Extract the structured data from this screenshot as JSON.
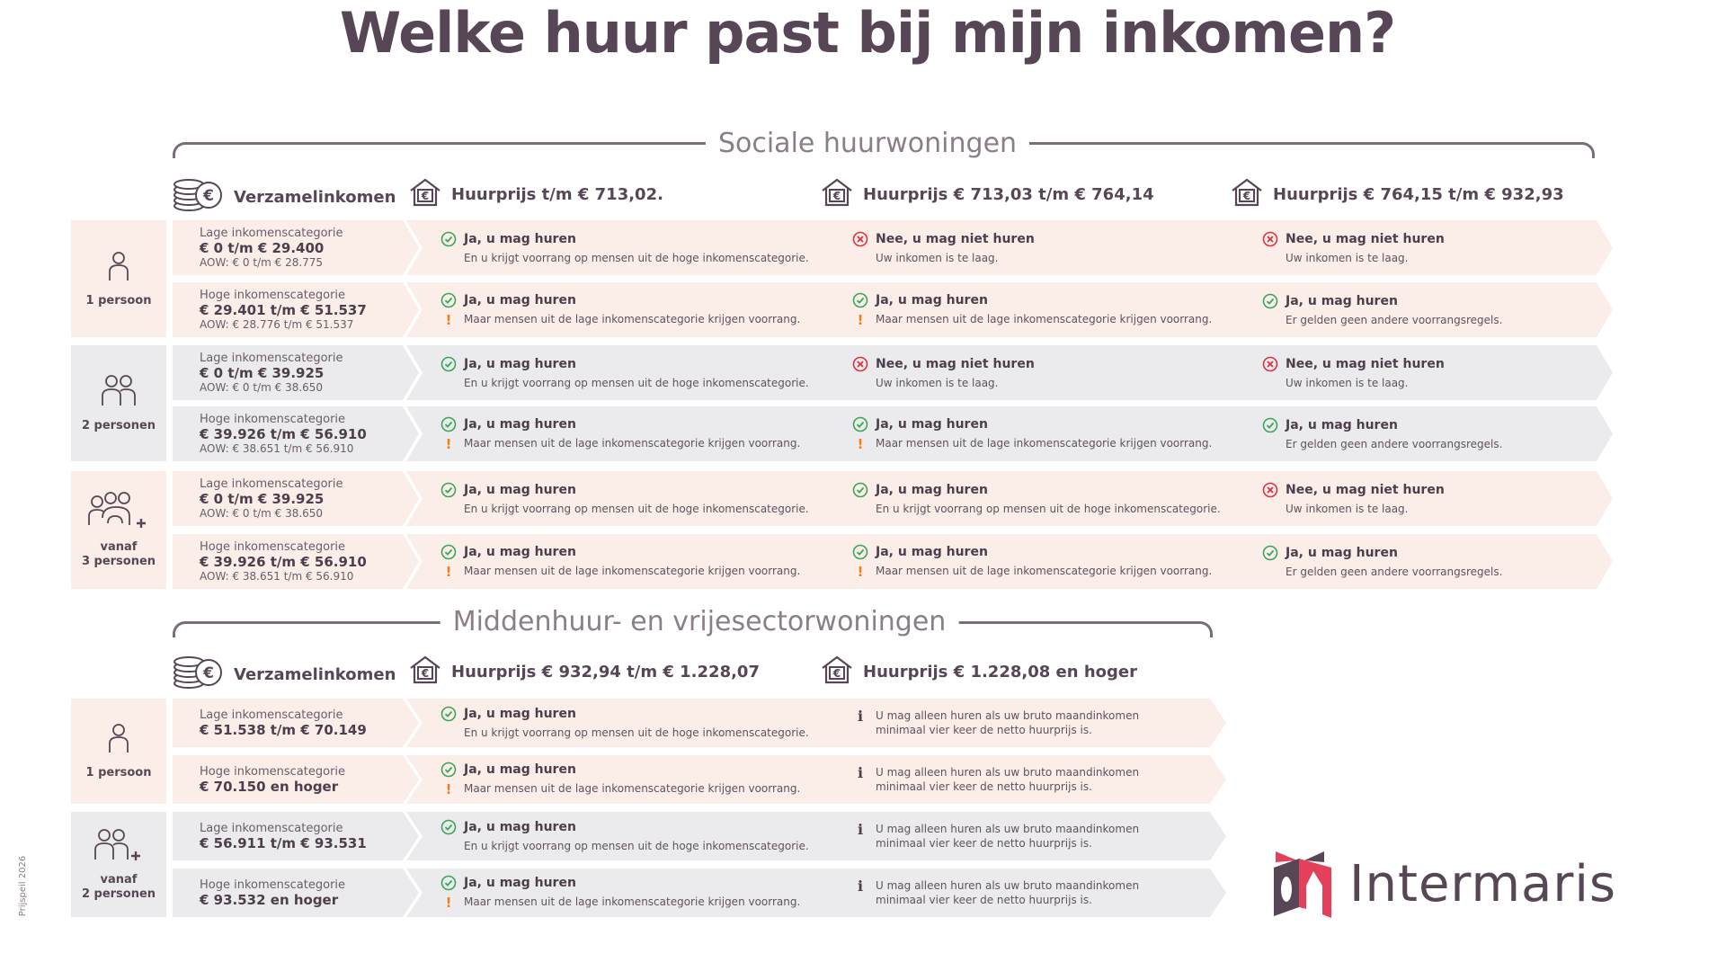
{
  "title": "Welke huur past bij mijn inkomen?",
  "footer_note": "Prijspeil 2026",
  "logo": {
    "name": "Intermaris"
  },
  "colors": {
    "pink": "#fbede8",
    "gray": "#ebebed",
    "yes": "#3aa55a",
    "no": "#d9333f",
    "warn": "#f07d1e",
    "text": "#574756"
  },
  "sociaal": {
    "section_label": "Sociale huurwoningen",
    "headers": [
      "Verzamelinkomen",
      "Huurprijs t/m € 713,02.",
      "Huurprijs € 713,03 t/m € 764,14",
      "Huurprijs € 764,15 t/m € 932,93"
    ],
    "groups": [
      {
        "person": [
          "1 persoon"
        ],
        "icon": "person-icon",
        "tone": "pink",
        "rows": [
          {
            "label": "Lage inkomenscategorie",
            "value": "€ 0 t/m € 29.400",
            "aow": "AOW: € 0 t/m € 28.775",
            "answers": [
              {
                "status": "yes",
                "title": "Ja, u mag huren",
                "text": "En u krijgt voorrang op mensen uit de hoge inkomenscategorie."
              },
              {
                "status": "no",
                "title": "Nee, u mag niet huren",
                "text": "Uw inkomen is te laag."
              },
              {
                "status": "no",
                "title": "Nee, u mag niet huren",
                "text": "Uw inkomen is te laag."
              }
            ]
          },
          {
            "label": "Hoge inkomenscategorie",
            "value": "€ 29.401 t/m € 51.537",
            "aow": "AOW: € 28.776 t/m € 51.537",
            "answers": [
              {
                "status": "yes",
                "warn": true,
                "title": "Ja, u mag huren",
                "text": "Maar mensen uit de lage inkomenscategorie krijgen voorrang."
              },
              {
                "status": "yes",
                "warn": true,
                "title": "Ja, u mag huren",
                "text": "Maar mensen uit de lage inkomenscategorie krijgen voorrang."
              },
              {
                "status": "yes",
                "title": "Ja, u mag huren",
                "text": "Er gelden geen andere voorrangsregels."
              }
            ]
          }
        ]
      },
      {
        "person": [
          "2 personen"
        ],
        "icon": "two-persons-icon",
        "tone": "gray",
        "rows": [
          {
            "label": "Lage inkomenscategorie",
            "value": "€ 0 t/m € 39.925",
            "aow": "AOW: € 0 t/m € 38.650",
            "answers": [
              {
                "status": "yes",
                "title": "Ja, u mag huren",
                "text": "En u krijgt voorrang op mensen uit de hoge inkomenscategorie."
              },
              {
                "status": "no",
                "title": "Nee, u mag niet huren",
                "text": "Uw inkomen is te laag."
              },
              {
                "status": "no",
                "title": "Nee, u mag niet huren",
                "text": "Uw inkomen is te laag."
              }
            ]
          },
          {
            "label": "Hoge inkomenscategorie",
            "value": "€ 39.926 t/m € 56.910",
            "aow": "AOW: € 38.651 t/m € 56.910",
            "answers": [
              {
                "status": "yes",
                "warn": true,
                "title": "Ja, u mag huren",
                "text": "Maar mensen uit de lage inkomenscategorie krijgen voorrang."
              },
              {
                "status": "yes",
                "warn": true,
                "title": "Ja, u mag huren",
                "text": "Maar mensen uit de lage inkomenscategorie krijgen voorrang."
              },
              {
                "status": "yes",
                "title": "Ja, u mag huren",
                "text": "Er gelden geen andere voorrangsregels."
              }
            ]
          }
        ]
      },
      {
        "person": [
          "vanaf",
          "3 personen"
        ],
        "icon": "family-icon",
        "tone": "pink",
        "rows": [
          {
            "label": "Lage inkomenscategorie",
            "value": "€ 0 t/m € 39.925",
            "aow": "AOW: € 0 t/m € 38.650",
            "answers": [
              {
                "status": "yes",
                "title": "Ja, u mag huren",
                "text": "En u krijgt voorrang op mensen uit de hoge inkomenscategorie."
              },
              {
                "status": "yes",
                "title": "Ja, u mag huren",
                "text": "En u krijgt voorrang op mensen uit de hoge inkomenscategorie."
              },
              {
                "status": "no",
                "title": "Nee, u mag niet huren",
                "text": "Uw inkomen is te laag."
              }
            ]
          },
          {
            "label": "Hoge inkomenscategorie",
            "value": "€ 39.926 t/m € 56.910",
            "aow": "AOW: € 38.651 t/m € 56.910",
            "answers": [
              {
                "status": "yes",
                "warn": true,
                "title": "Ja, u mag huren",
                "text": "Maar mensen uit de lage inkomenscategorie krijgen voorrang."
              },
              {
                "status": "yes",
                "warn": true,
                "title": "Ja, u mag huren",
                "text": "Maar mensen uit de lage inkomenscategorie krijgen voorrang."
              },
              {
                "status": "yes",
                "title": "Ja, u mag huren",
                "text": "Er gelden geen andere voorrangsregels."
              }
            ]
          }
        ]
      }
    ]
  },
  "midden": {
    "section_label": "Middenhuur- en vrijesectorwoningen",
    "headers": [
      "Verzamelinkomen",
      "Huurprijs € 932,94 t/m € 1.228,07",
      "Huurprijs € 1.228,08 en hoger"
    ],
    "groups": [
      {
        "person": [
          "1 persoon"
        ],
        "icon": "person-icon",
        "tone": "pink",
        "rows": [
          {
            "label": "Lage inkomenscategorie",
            "value": "€ 51.538 t/m € 70.149",
            "answers": [
              {
                "status": "yes",
                "title": "Ja, u mag huren",
                "text": "En u krijgt voorrang op mensen uit de hoge inkomenscategorie."
              },
              {
                "status": "info",
                "text": "U mag alleen huren als uw bruto maandinkomen minimaal vier keer de netto huurprijs is."
              }
            ]
          },
          {
            "label": "Hoge inkomenscategorie",
            "value": "€ 70.150 en hoger",
            "answers": [
              {
                "status": "yes",
                "warn": true,
                "title": "Ja, u mag huren",
                "text": "Maar mensen uit de lage inkomenscategorie krijgen voorrang."
              },
              {
                "status": "info",
                "text": "U mag alleen huren als uw bruto maandinkomen minimaal vier keer de netto huurprijs is."
              }
            ]
          }
        ]
      },
      {
        "person": [
          "vanaf",
          "2 personen"
        ],
        "icon": "two-persons-plus-icon",
        "tone": "gray",
        "rows": [
          {
            "label": "Lage inkomenscategorie",
            "value": "€ 56.911 t/m € 93.531",
            "answers": [
              {
                "status": "yes",
                "title": "Ja, u mag huren",
                "text": "En u krijgt voorrang op mensen uit de hoge inkomenscategorie."
              },
              {
                "status": "info",
                "text": "U mag alleen huren als uw bruto maandinkomen minimaal vier keer de netto huurprijs is."
              }
            ]
          },
          {
            "label": "Hoge inkomenscategorie",
            "value": "€ 93.532 en hoger",
            "answers": [
              {
                "status": "yes",
                "warn": true,
                "title": "Ja, u mag huren",
                "text": "Maar mensen uit de lage inkomenscategorie krijgen voorrang."
              },
              {
                "status": "info",
                "text": "U mag alleen huren als uw bruto maandinkomen minimaal vier keer de netto huurprijs is."
              }
            ]
          }
        ]
      }
    ]
  }
}
